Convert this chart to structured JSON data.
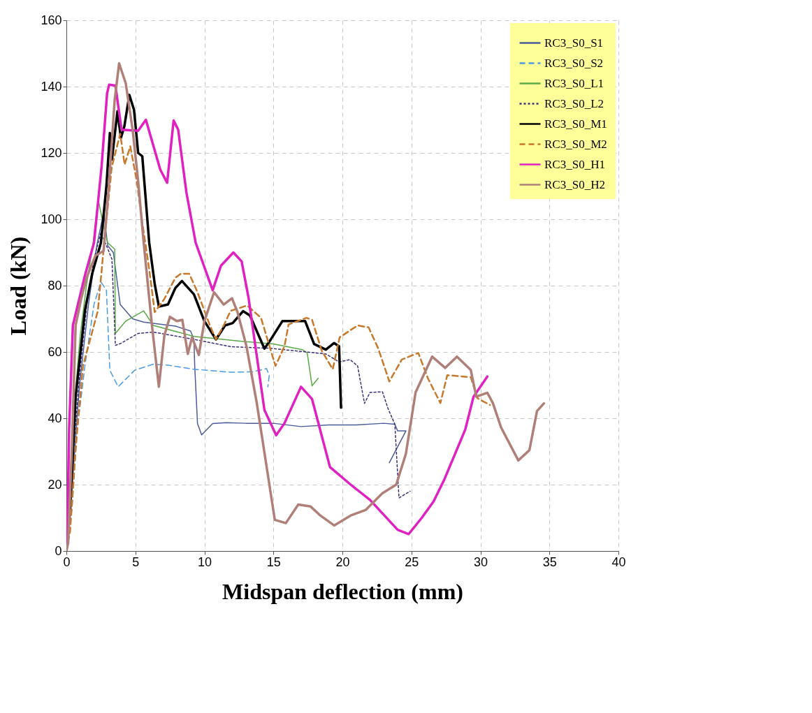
{
  "chart_data": {
    "type": "line",
    "xlabel": "Midspan deflection (mm)",
    "ylabel": "Load (kN)",
    "xlim": [
      0,
      40
    ],
    "xticks": [
      0,
      5,
      10,
      15,
      20,
      25,
      30,
      35,
      40
    ],
    "ylim": [
      0,
      160
    ],
    "yticks": [
      0,
      20,
      40,
      60,
      80,
      100,
      120,
      140,
      160
    ],
    "grid": true,
    "legend": "top right",
    "marker": "none",
    "series": [
      {
        "name": "RC3_S0_S1",
        "color": "#4a5d9a",
        "line_style": "solid",
        "x": [
          0,
          0.4,
          0.94,
          1.6,
          2.2,
          2.7,
          3.0,
          3.4,
          3.9,
          4.8,
          5.6,
          7.9,
          9.0,
          9.24,
          9.3,
          9.5,
          9.8,
          10.6,
          11.6,
          13,
          15,
          17,
          19,
          21,
          23,
          23.8,
          24.0,
          24.6,
          23.4
        ],
        "values": [
          0,
          18.6,
          49.5,
          74.3,
          92,
          102,
          92,
          90,
          74.3,
          70,
          69,
          67.8,
          66.3,
          63.8,
          55.7,
          38.4,
          35,
          38.4,
          38.7,
          38.5,
          38.5,
          37.5,
          38,
          38,
          38.5,
          38.2,
          36.2,
          36.2,
          26.6
        ]
      },
      {
        "name": "RC3_S0_S2",
        "color": "#4a9be0",
        "line_style": "dashed",
        "x": [
          0,
          0.4,
          0.8,
          1.34,
          2.0,
          2.5,
          2.9,
          3.15,
          3.75,
          4.95,
          6.3,
          7.4,
          9.24,
          11.9,
          13.5,
          14.5,
          14.7,
          14.6
        ],
        "values": [
          0,
          12.4,
          37,
          55.7,
          74.3,
          81.1,
          78.6,
          54.5,
          49.5,
          54.5,
          56.3,
          56,
          54.8,
          53.9,
          54,
          55,
          53,
          49.5
        ]
      },
      {
        "name": "RC3_S0_L1",
        "color": "#5aaa46",
        "line_style": "solid",
        "x": [
          0,
          0.5,
          1.0,
          1.47,
          1.94,
          2.3,
          2.8,
          3.0,
          3.5,
          3.55,
          4.3,
          5.6,
          6.3,
          9.24,
          12.7,
          15,
          17.1,
          17.45,
          17.8,
          18.25
        ],
        "values": [
          0,
          40,
          65,
          80.5,
          92.9,
          106,
          96,
          92.9,
          91,
          65.6,
          69.3,
          72.4,
          68,
          64.7,
          63.2,
          62.4,
          60.7,
          59.7,
          49.8,
          52.1
        ]
      },
      {
        "name": "RC3_S0_L2",
        "color": "#3c2f7a",
        "line_style": "dotted",
        "x": [
          0,
          0.5,
          1.0,
          1.5,
          2.0,
          2.5,
          2.95,
          3.3,
          3.55,
          3.9,
          5.2,
          6.3,
          9.24,
          11.9,
          14.8,
          18.8,
          19.76,
          20.55,
          21.1,
          21.6,
          22.0,
          22.9,
          23.3,
          23.8,
          24.0,
          24.1,
          24.9
        ],
        "values": [
          0,
          30,
          55,
          75,
          88,
          96,
          91.6,
          88,
          62,
          62.5,
          65.6,
          66,
          63.8,
          61.6,
          61.1,
          59.4,
          57,
          57.7,
          55.8,
          44.5,
          47.8,
          48,
          43,
          38.2,
          23.3,
          16,
          18
        ]
      },
      {
        "name": "RC3_S0_M1",
        "color": "#000000",
        "line_style": "solid",
        "x": [
          0,
          0.27,
          0.67,
          1.34,
          1.87,
          2.5,
          2.9,
          3.15,
          3.3,
          3.7,
          3.95,
          4.2,
          4.56,
          4.9,
          5.2,
          5.5,
          6.0,
          6.4,
          6.7,
          7.36,
          7.9,
          8.37,
          9.24,
          10.0,
          10.84,
          11.5,
          12.05,
          12.8,
          13.3,
          14.35,
          14.8,
          15.65,
          17.3,
          17.95,
          18.8,
          19.4,
          19.76,
          19.9
        ],
        "values": [
          0,
          12.4,
          46.4,
          72.4,
          83.6,
          92.9,
          110,
          126,
          118,
          132.6,
          124.5,
          128,
          137.5,
          133,
          120,
          119,
          93,
          80.5,
          73.7,
          74.3,
          79.3,
          81.4,
          77.4,
          69.3,
          63.8,
          68,
          68.7,
          72.3,
          71,
          61,
          63.7,
          69.3,
          69.3,
          62.4,
          60.7,
          62.7,
          61.7,
          43.2
        ]
      },
      {
        "name": "RC3_S0_M2",
        "color": "#c8782a",
        "line_style": "dashed",
        "x": [
          0,
          0.27,
          0.67,
          1.2,
          2.28,
          2.74,
          3.29,
          3.9,
          4.22,
          4.63,
          5.1,
          5.5,
          6.0,
          6.4,
          7.1,
          7.9,
          8.3,
          8.9,
          9.5,
          10.4,
          10.84,
          11.4,
          11.9,
          13.1,
          14.1,
          15.15,
          15.8,
          16.1,
          17.4,
          17.8,
          18.5,
          19.3,
          19.8,
          21.1,
          21.9,
          22.6,
          23.4,
          24.3,
          25.5,
          26.2,
          27.1,
          27.6,
          29.3,
          29.8,
          30.7
        ],
        "values": [
          0,
          6,
          31,
          55.7,
          72.4,
          92.9,
          115.8,
          125.8,
          116.5,
          122,
          111.5,
          99,
          85,
          72,
          76,
          82.4,
          83.6,
          83.6,
          78,
          68,
          63.8,
          68,
          72.4,
          74,
          70.3,
          55.8,
          61.7,
          68.3,
          70.3,
          69.7,
          60.4,
          54.8,
          64.4,
          68,
          67.4,
          61,
          51.1,
          57.7,
          59.7,
          52,
          44.6,
          53,
          52.4,
          46,
          44
        ]
      },
      {
        "name": "RC3_S0_H1",
        "color": "#e020c0",
        "line_style": "solid",
        "x": [
          0,
          0.07,
          0.2,
          0.47,
          1.34,
          2.0,
          2.55,
          2.95,
          3.1,
          3.55,
          4.0,
          5.2,
          5.76,
          6.8,
          7.3,
          7.77,
          8.1,
          8.7,
          9.37,
          10.6,
          11.2,
          12.1,
          12.7,
          13.2,
          14.35,
          15.2,
          15.8,
          17.0,
          17.8,
          19.1,
          20.6,
          22.0,
          24.0,
          24.8,
          25.75,
          26.6,
          27.4,
          28.9,
          29.5,
          30.5
        ],
        "values": [
          0,
          6,
          37,
          68,
          83,
          92.9,
          115.9,
          138,
          140.6,
          140.3,
          127,
          126.7,
          130,
          115,
          111,
          129.8,
          127,
          108,
          92.9,
          78.6,
          86,
          90,
          87.3,
          76.3,
          42.5,
          34.9,
          38.5,
          49.5,
          45.8,
          25.3,
          20,
          15.4,
          6.4,
          5.1,
          10,
          14.9,
          21.7,
          36.6,
          46.5,
          52.6
        ]
      },
      {
        "name": "RC3_S0_H2",
        "color": "#b08078",
        "line_style": "solid",
        "x": [
          0,
          0.13,
          0.4,
          0.67,
          1.07,
          1.47,
          2.1,
          2.7,
          3.1,
          3.5,
          3.82,
          4.3,
          4.8,
          5.2,
          5.6,
          6.2,
          6.7,
          7.1,
          7.5,
          8.0,
          8.4,
          8.8,
          9.1,
          9.6,
          10.0,
          10.7,
          11.4,
          12.0,
          12.4,
          13.05,
          13.8,
          15.1,
          15.9,
          16.8,
          17.7,
          18.4,
          19.4,
          20.6,
          21.7,
          22.9,
          23.9,
          24.6,
          25.3,
          26.5,
          27.45,
          28.3,
          29.3,
          29.7,
          30.5,
          30.9,
          31.5,
          32.75,
          33.55,
          34.1,
          34.6
        ],
        "values": [
          0,
          2.5,
          31,
          68,
          76,
          82.4,
          89,
          90.5,
          111.5,
          136,
          147,
          141,
          127,
          111.5,
          93,
          68,
          49.5,
          65,
          70.6,
          69.3,
          69.7,
          59.4,
          64.4,
          59.1,
          69.3,
          78,
          74.3,
          76.2,
          72,
          61.7,
          44.5,
          9.4,
          8.4,
          14,
          13.4,
          10.7,
          7.7,
          10.7,
          12.4,
          17.4,
          20,
          29.3,
          47.8,
          58.6,
          55.2,
          58.6,
          54.6,
          46.5,
          47.7,
          44.6,
          37.2,
          27.3,
          30.4,
          42.2,
          44.5
        ]
      }
    ]
  }
}
